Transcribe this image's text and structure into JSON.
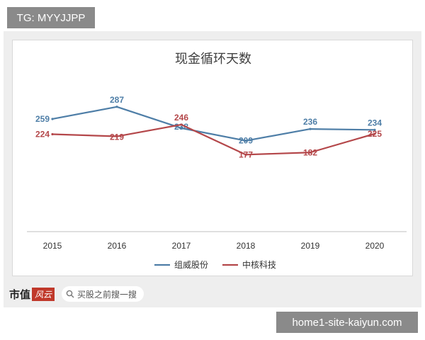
{
  "header": {
    "tg_label": "TG: MYYJJPP"
  },
  "footer": {
    "brand_text": "市值",
    "brand_logo": "风云",
    "search_placeholder": "买股之前搜一搜",
    "site_label": "home1-site-kaiyun.com"
  },
  "chart_data": {
    "type": "line",
    "title": "现金循环天数",
    "xlabel": "",
    "ylabel": "",
    "categories": [
      "2015",
      "2016",
      "2017",
      "2018",
      "2019",
      "2020"
    ],
    "series": [
      {
        "name": "组威股份",
        "color": "#4e7ea7",
        "values": [
          259,
          287,
          238,
          209,
          236,
          234
        ]
      },
      {
        "name": "中核科技",
        "color": "#b4474a",
        "values": [
          224,
          219,
          246,
          177,
          182,
          225
        ]
      }
    ],
    "ylim": [
      0,
      340
    ],
    "grid": false,
    "legend_position": "bottom-center"
  }
}
